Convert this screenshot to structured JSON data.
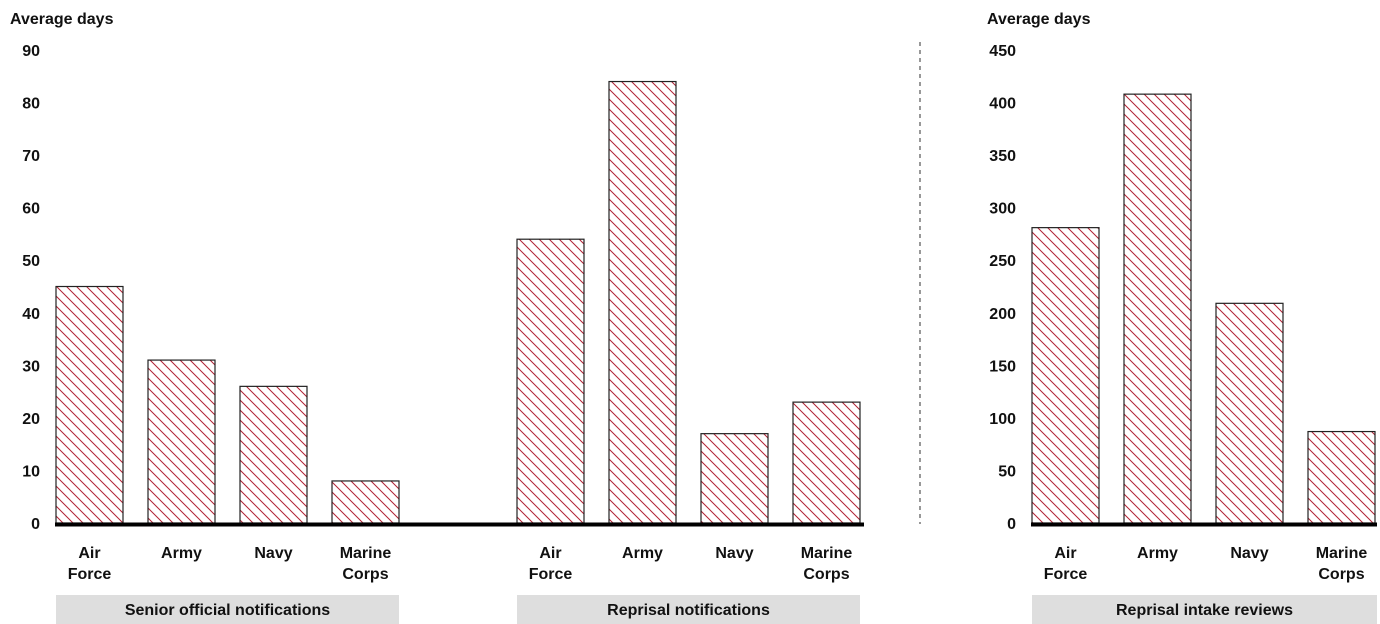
{
  "colors": {
    "bar_hatch": "#b22234",
    "bar_outline": "#222222",
    "axis": "#000000",
    "group_band": "#dedede",
    "divider": "#555555"
  },
  "chart_data": [
    {
      "type": "bar",
      "ylabel": "Average days",
      "ylim": [
        0,
        90
      ],
      "yticks": [
        "0",
        "10",
        "20",
        "30",
        "40",
        "50",
        "60",
        "70",
        "80",
        "90"
      ],
      "groups": [
        {
          "label": "Senior official notifications",
          "categories": [
            [
              "Air",
              "Force"
            ],
            [
              "Army"
            ],
            [
              "Navy"
            ],
            [
              "Marine",
              "Corps"
            ]
          ],
          "values": [
            45,
            31,
            26,
            8
          ]
        },
        {
          "label": "Reprisal notifications",
          "categories": [
            [
              "Air",
              "Force"
            ],
            [
              "Army"
            ],
            [
              "Navy"
            ],
            [
              "Marine",
              "Corps"
            ]
          ],
          "values": [
            54,
            84,
            17,
            23
          ]
        }
      ],
      "grid": false,
      "bar_fill": "diagonal-hatch"
    },
    {
      "type": "bar",
      "ylabel": "Average days",
      "ylim": [
        0,
        450
      ],
      "yticks": [
        "0",
        "50",
        "100",
        "150",
        "200",
        "250",
        "300",
        "350",
        "400",
        "450"
      ],
      "groups": [
        {
          "label": "Reprisal intake reviews",
          "categories": [
            [
              "Air",
              "Force"
            ],
            [
              "Army"
            ],
            [
              "Navy"
            ],
            [
              "Marine",
              "Corps"
            ]
          ],
          "values": [
            281,
            408,
            209,
            87
          ]
        }
      ],
      "grid": false,
      "bar_fill": "diagonal-hatch"
    }
  ]
}
